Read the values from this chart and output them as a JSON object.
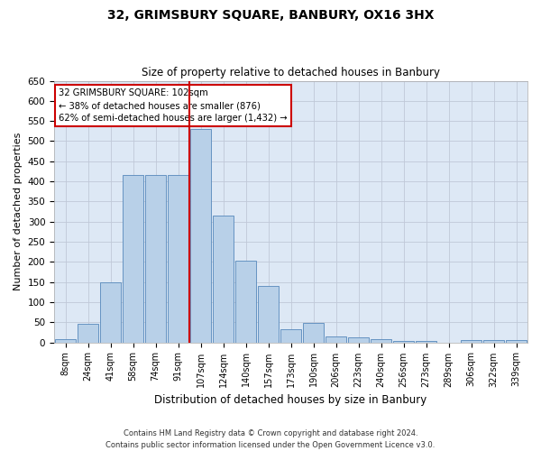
{
  "title": "32, GRIMSBURY SQUARE, BANBURY, OX16 3HX",
  "subtitle": "Size of property relative to detached houses in Banbury",
  "xlabel": "Distribution of detached houses by size in Banbury",
  "ylabel": "Number of detached properties",
  "categories": [
    "8sqm",
    "24sqm",
    "41sqm",
    "58sqm",
    "74sqm",
    "91sqm",
    "107sqm",
    "124sqm",
    "140sqm",
    "157sqm",
    "173sqm",
    "190sqm",
    "206sqm",
    "223sqm",
    "240sqm",
    "256sqm",
    "273sqm",
    "289sqm",
    "306sqm",
    "322sqm",
    "339sqm"
  ],
  "values": [
    8,
    45,
    150,
    415,
    415,
    415,
    530,
    315,
    202,
    140,
    33,
    48,
    15,
    13,
    9,
    4,
    3,
    0,
    6,
    5,
    6
  ],
  "bar_color": "#b8d0e8",
  "bar_edge_color": "#5588bb",
  "vline_x_index": 6,
  "vline_color": "#cc0000",
  "annotation_title": "32 GRIMSBURY SQUARE: 102sqm",
  "annotation_line1": "← 38% of detached houses are smaller (876)",
  "annotation_line2": "62% of semi-detached houses are larger (1,432) →",
  "annotation_box_color": "#cc0000",
  "ylim": [
    0,
    650
  ],
  "yticks": [
    0,
    50,
    100,
    150,
    200,
    250,
    300,
    350,
    400,
    450,
    500,
    550,
    600,
    650
  ],
  "footer_line1": "Contains HM Land Registry data © Crown copyright and database right 2024.",
  "footer_line2": "Contains public sector information licensed under the Open Government Licence v3.0.",
  "background_color": "#ffffff",
  "plot_background_color": "#dde8f5"
}
